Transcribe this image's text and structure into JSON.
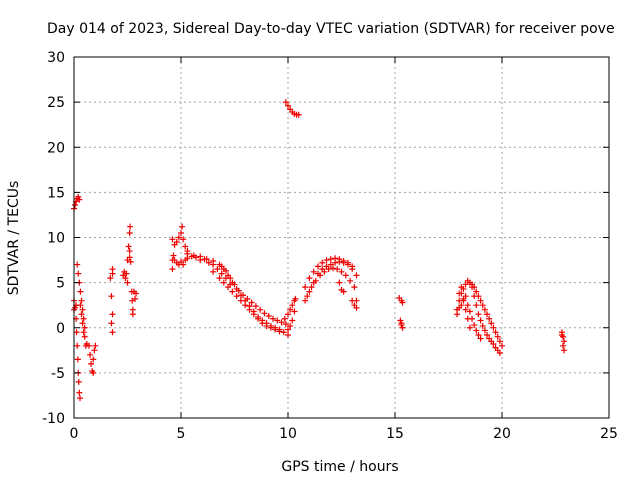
{
  "chart_data": {
    "type": "scatter",
    "title": "Day 014 of 2023, Sidereal Day-to-day VTEC variation (SDTVAR) for receiver pove",
    "xlabel": "GPS time / hours",
    "ylabel": "SDTVAR / TECUs",
    "xlim": [
      0,
      25
    ],
    "ylim": [
      -10,
      30
    ],
    "xticks": [
      0,
      5,
      10,
      15,
      20,
      25
    ],
    "yticks": [
      -10,
      -5,
      0,
      5,
      10,
      15,
      20,
      25,
      30
    ],
    "grid": true,
    "marker": "+",
    "color": "#ee0000",
    "series": [
      {
        "name": "SDTVAR",
        "points": [
          [
            0.0,
            13.2
          ],
          [
            0.05,
            13.6
          ],
          [
            0.1,
            14.0
          ],
          [
            0.15,
            14.3
          ],
          [
            0.2,
            14.5
          ],
          [
            0.25,
            14.2
          ],
          [
            0.0,
            3.0
          ],
          [
            0.05,
            2.2
          ],
          [
            0.1,
            1.0
          ],
          [
            0.12,
            -0.5
          ],
          [
            0.15,
            -2.0
          ],
          [
            0.18,
            -3.5
          ],
          [
            0.2,
            -5.0
          ],
          [
            0.22,
            -6.0
          ],
          [
            0.25,
            -7.2
          ],
          [
            0.28,
            -7.8
          ],
          [
            0.15,
            7.0
          ],
          [
            0.2,
            6.0
          ],
          [
            0.25,
            5.0
          ],
          [
            0.3,
            4.0
          ],
          [
            0.35,
            3.0
          ],
          [
            0.4,
            2.0
          ],
          [
            0.45,
            1.0
          ],
          [
            0.5,
            0.0
          ],
          [
            0.5,
            -1.0
          ],
          [
            0.55,
            -2.0
          ],
          [
            0.6,
            -1.8
          ],
          [
            0.3,
            2.5
          ],
          [
            0.35,
            1.5
          ],
          [
            0.4,
            0.5
          ],
          [
            0.45,
            -0.5
          ],
          [
            0.0,
            2.0
          ],
          [
            0.1,
            2.5
          ],
          [
            0.7,
            -2.0
          ],
          [
            0.75,
            -3.0
          ],
          [
            0.8,
            -4.0
          ],
          [
            0.85,
            -4.8
          ],
          [
            0.9,
            -5.0
          ],
          [
            0.9,
            -3.5
          ],
          [
            0.95,
            -2.5
          ],
          [
            1.0,
            -2.0
          ],
          [
            1.7,
            5.5
          ],
          [
            1.8,
            6.5
          ],
          [
            1.75,
            3.5
          ],
          [
            1.8,
            1.5
          ],
          [
            1.75,
            0.5
          ],
          [
            1.8,
            -0.5
          ],
          [
            1.8,
            6.0
          ],
          [
            2.3,
            5.8
          ],
          [
            2.35,
            6.2
          ],
          [
            2.4,
            5.5
          ],
          [
            2.45,
            6.0
          ],
          [
            2.5,
            7.5
          ],
          [
            2.5,
            5.0
          ],
          [
            2.55,
            9.0
          ],
          [
            2.6,
            10.5
          ],
          [
            2.62,
            11.2
          ],
          [
            2.6,
            8.5
          ],
          [
            2.6,
            7.8
          ],
          [
            2.65,
            7.3
          ],
          [
            2.7,
            4.0
          ],
          [
            2.72,
            3.0
          ],
          [
            2.75,
            2.0
          ],
          [
            2.75,
            1.5
          ],
          [
            2.8,
            4.0
          ],
          [
            2.85,
            3.2
          ],
          [
            2.9,
            3.8
          ],
          [
            4.6,
            6.5
          ],
          [
            4.6,
            7.5
          ],
          [
            4.65,
            8.0
          ],
          [
            4.6,
            9.8
          ],
          [
            4.7,
            9.2
          ],
          [
            4.8,
            9.5
          ],
          [
            4.9,
            10.0
          ],
          [
            5.0,
            10.5
          ],
          [
            5.05,
            11.2
          ],
          [
            5.1,
            9.8
          ],
          [
            5.2,
            9.0
          ],
          [
            5.3,
            8.5
          ],
          [
            4.7,
            7.5
          ],
          [
            4.8,
            7.2
          ],
          [
            4.9,
            7.0
          ],
          [
            5.0,
            7.3
          ],
          [
            5.1,
            7.0
          ],
          [
            5.2,
            7.5
          ],
          [
            5.3,
            7.7
          ],
          [
            5.5,
            7.9
          ],
          [
            5.7,
            7.8
          ],
          [
            5.9,
            7.5
          ],
          [
            6.1,
            7.6
          ],
          [
            6.3,
            7.2
          ],
          [
            6.5,
            7.0
          ],
          [
            6.7,
            6.5
          ],
          [
            6.9,
            6.0
          ],
          [
            7.1,
            5.5
          ],
          [
            7.3,
            4.8
          ],
          [
            5.3,
            8.2
          ],
          [
            5.6,
            8.0
          ],
          [
            5.9,
            7.9
          ],
          [
            6.2,
            7.6
          ],
          [
            6.5,
            7.4
          ],
          [
            6.8,
            7.0
          ],
          [
            7.0,
            6.5
          ],
          [
            7.2,
            5.8
          ],
          [
            7.4,
            5.0
          ],
          [
            7.6,
            4.3
          ],
          [
            7.8,
            3.6
          ],
          [
            8.0,
            3.0
          ],
          [
            8.2,
            2.4
          ],
          [
            8.4,
            1.8
          ],
          [
            8.6,
            1.2
          ],
          [
            8.8,
            0.8
          ],
          [
            9.0,
            0.5
          ],
          [
            9.2,
            0.2
          ],
          [
            9.4,
            0.0
          ],
          [
            9.6,
            -0.2
          ],
          [
            9.8,
            -0.5
          ],
          [
            10.0,
            -0.8
          ],
          [
            6.5,
            6.2
          ],
          [
            6.8,
            5.5
          ],
          [
            7.0,
            5.0
          ],
          [
            7.2,
            4.5
          ],
          [
            7.4,
            4.0
          ],
          [
            7.6,
            3.5
          ],
          [
            7.8,
            3.0
          ],
          [
            8.0,
            2.5
          ],
          [
            8.2,
            2.0
          ],
          [
            8.4,
            1.5
          ],
          [
            8.6,
            1.0
          ],
          [
            8.8,
            0.5
          ],
          [
            9.0,
            0.2
          ],
          [
            9.2,
            0.0
          ],
          [
            9.4,
            -0.2
          ],
          [
            9.6,
            -0.4
          ],
          [
            6.9,
            6.8
          ],
          [
            7.1,
            6.3
          ],
          [
            7.3,
            5.5
          ],
          [
            7.5,
            4.8
          ],
          [
            7.7,
            4.1
          ],
          [
            7.9,
            3.6
          ],
          [
            8.1,
            3.2
          ],
          [
            8.3,
            2.8
          ],
          [
            8.5,
            2.4
          ],
          [
            8.7,
            2.0
          ],
          [
            8.9,
            1.6
          ],
          [
            9.1,
            1.3
          ],
          [
            9.3,
            1.0
          ],
          [
            9.5,
            0.8
          ],
          [
            9.7,
            0.6
          ],
          [
            9.9,
            0.4
          ],
          [
            9.85,
            1.0
          ],
          [
            10.0,
            1.5
          ],
          [
            10.1,
            2.0
          ],
          [
            10.2,
            2.5
          ],
          [
            10.3,
            3.0
          ],
          [
            10.35,
            3.2
          ],
          [
            10.1,
            0.2
          ],
          [
            10.2,
            0.8
          ],
          [
            10.3,
            1.8
          ],
          [
            10.0,
            -0.2
          ],
          [
            9.9,
            25.0
          ],
          [
            10.0,
            24.6
          ],
          [
            10.1,
            24.2
          ],
          [
            10.2,
            23.9
          ],
          [
            10.3,
            23.7
          ],
          [
            10.4,
            23.6
          ],
          [
            10.5,
            23.6
          ],
          [
            10.8,
            3.0
          ],
          [
            11.0,
            4.0
          ],
          [
            11.2,
            5.0
          ],
          [
            11.4,
            6.0
          ],
          [
            11.6,
            6.5
          ],
          [
            11.8,
            6.8
          ],
          [
            12.0,
            7.0
          ],
          [
            12.2,
            7.2
          ],
          [
            12.4,
            7.3
          ],
          [
            12.6,
            7.2
          ],
          [
            12.8,
            7.0
          ],
          [
            13.0,
            6.5
          ],
          [
            13.2,
            5.8
          ],
          [
            10.8,
            4.5
          ],
          [
            11.0,
            5.5
          ],
          [
            11.2,
            6.2
          ],
          [
            11.4,
            6.8
          ],
          [
            11.6,
            7.2
          ],
          [
            11.8,
            7.5
          ],
          [
            12.0,
            7.6
          ],
          [
            12.2,
            7.7
          ],
          [
            12.4,
            7.6
          ],
          [
            12.6,
            7.4
          ],
          [
            12.8,
            7.2
          ],
          [
            13.0,
            6.8
          ],
          [
            10.9,
            3.5
          ],
          [
            11.1,
            4.5
          ],
          [
            11.3,
            5.2
          ],
          [
            11.5,
            5.8
          ],
          [
            11.7,
            6.2
          ],
          [
            11.9,
            6.5
          ],
          [
            12.1,
            6.6
          ],
          [
            12.3,
            6.5
          ],
          [
            12.5,
            6.2
          ],
          [
            12.7,
            5.8
          ],
          [
            12.9,
            5.2
          ],
          [
            13.1,
            4.5
          ],
          [
            12.4,
            5.0
          ],
          [
            12.5,
            4.2
          ],
          [
            12.6,
            4.0
          ],
          [
            13.0,
            3.0
          ],
          [
            13.1,
            2.5
          ],
          [
            13.2,
            2.2
          ],
          [
            13.2,
            3.0
          ],
          [
            15.2,
            3.3
          ],
          [
            15.3,
            3.0
          ],
          [
            15.35,
            2.8
          ],
          [
            15.25,
            0.8
          ],
          [
            15.3,
            0.3
          ],
          [
            15.35,
            0.0
          ],
          [
            15.3,
            0.5
          ],
          [
            17.9,
            2.0
          ],
          [
            18.0,
            3.0
          ],
          [
            18.1,
            3.8
          ],
          [
            18.2,
            4.3
          ],
          [
            18.3,
            4.8
          ],
          [
            18.4,
            5.2
          ],
          [
            18.5,
            5.0
          ],
          [
            18.6,
            4.8
          ],
          [
            18.7,
            4.5
          ],
          [
            18.8,
            4.0
          ],
          [
            17.9,
            1.5
          ],
          [
            18.0,
            2.2
          ],
          [
            18.1,
            2.5
          ],
          [
            18.2,
            3.2
          ],
          [
            18.3,
            3.5
          ],
          [
            18.4,
            2.5
          ],
          [
            18.5,
            1.8
          ],
          [
            18.6,
            1.0
          ],
          [
            18.7,
            0.3
          ],
          [
            18.8,
            -0.3
          ],
          [
            18.9,
            -0.8
          ],
          [
            19.0,
            -1.2
          ],
          [
            18.6,
            4.5
          ],
          [
            18.7,
            3.5
          ],
          [
            18.8,
            2.5
          ],
          [
            18.9,
            1.5
          ],
          [
            19.0,
            0.8
          ],
          [
            19.1,
            0.2
          ],
          [
            19.2,
            -0.3
          ],
          [
            19.3,
            -0.8
          ],
          [
            19.4,
            -1.2
          ],
          [
            19.5,
            -1.5
          ],
          [
            19.6,
            -1.8
          ],
          [
            19.7,
            -2.2
          ],
          [
            19.8,
            -2.5
          ],
          [
            19.9,
            -2.8
          ],
          [
            18.9,
            3.5
          ],
          [
            19.0,
            3.0
          ],
          [
            19.1,
            2.5
          ],
          [
            19.2,
            2.0
          ],
          [
            19.3,
            1.5
          ],
          [
            19.4,
            1.0
          ],
          [
            19.5,
            0.5
          ],
          [
            19.6,
            0.0
          ],
          [
            19.7,
            -0.5
          ],
          [
            19.8,
            -1.0
          ],
          [
            19.9,
            -1.5
          ],
          [
            20.0,
            -2.0
          ],
          [
            18.0,
            3.8
          ],
          [
            18.1,
            4.5
          ],
          [
            18.2,
            3.0
          ],
          [
            18.3,
            2.0
          ],
          [
            18.4,
            1.0
          ],
          [
            18.5,
            0.0
          ],
          [
            22.8,
            -0.5
          ],
          [
            22.85,
            -1.0
          ],
          [
            22.9,
            -1.5
          ],
          [
            22.85,
            -2.0
          ],
          [
            22.9,
            -2.5
          ],
          [
            22.8,
            -0.8
          ]
        ]
      }
    ]
  }
}
